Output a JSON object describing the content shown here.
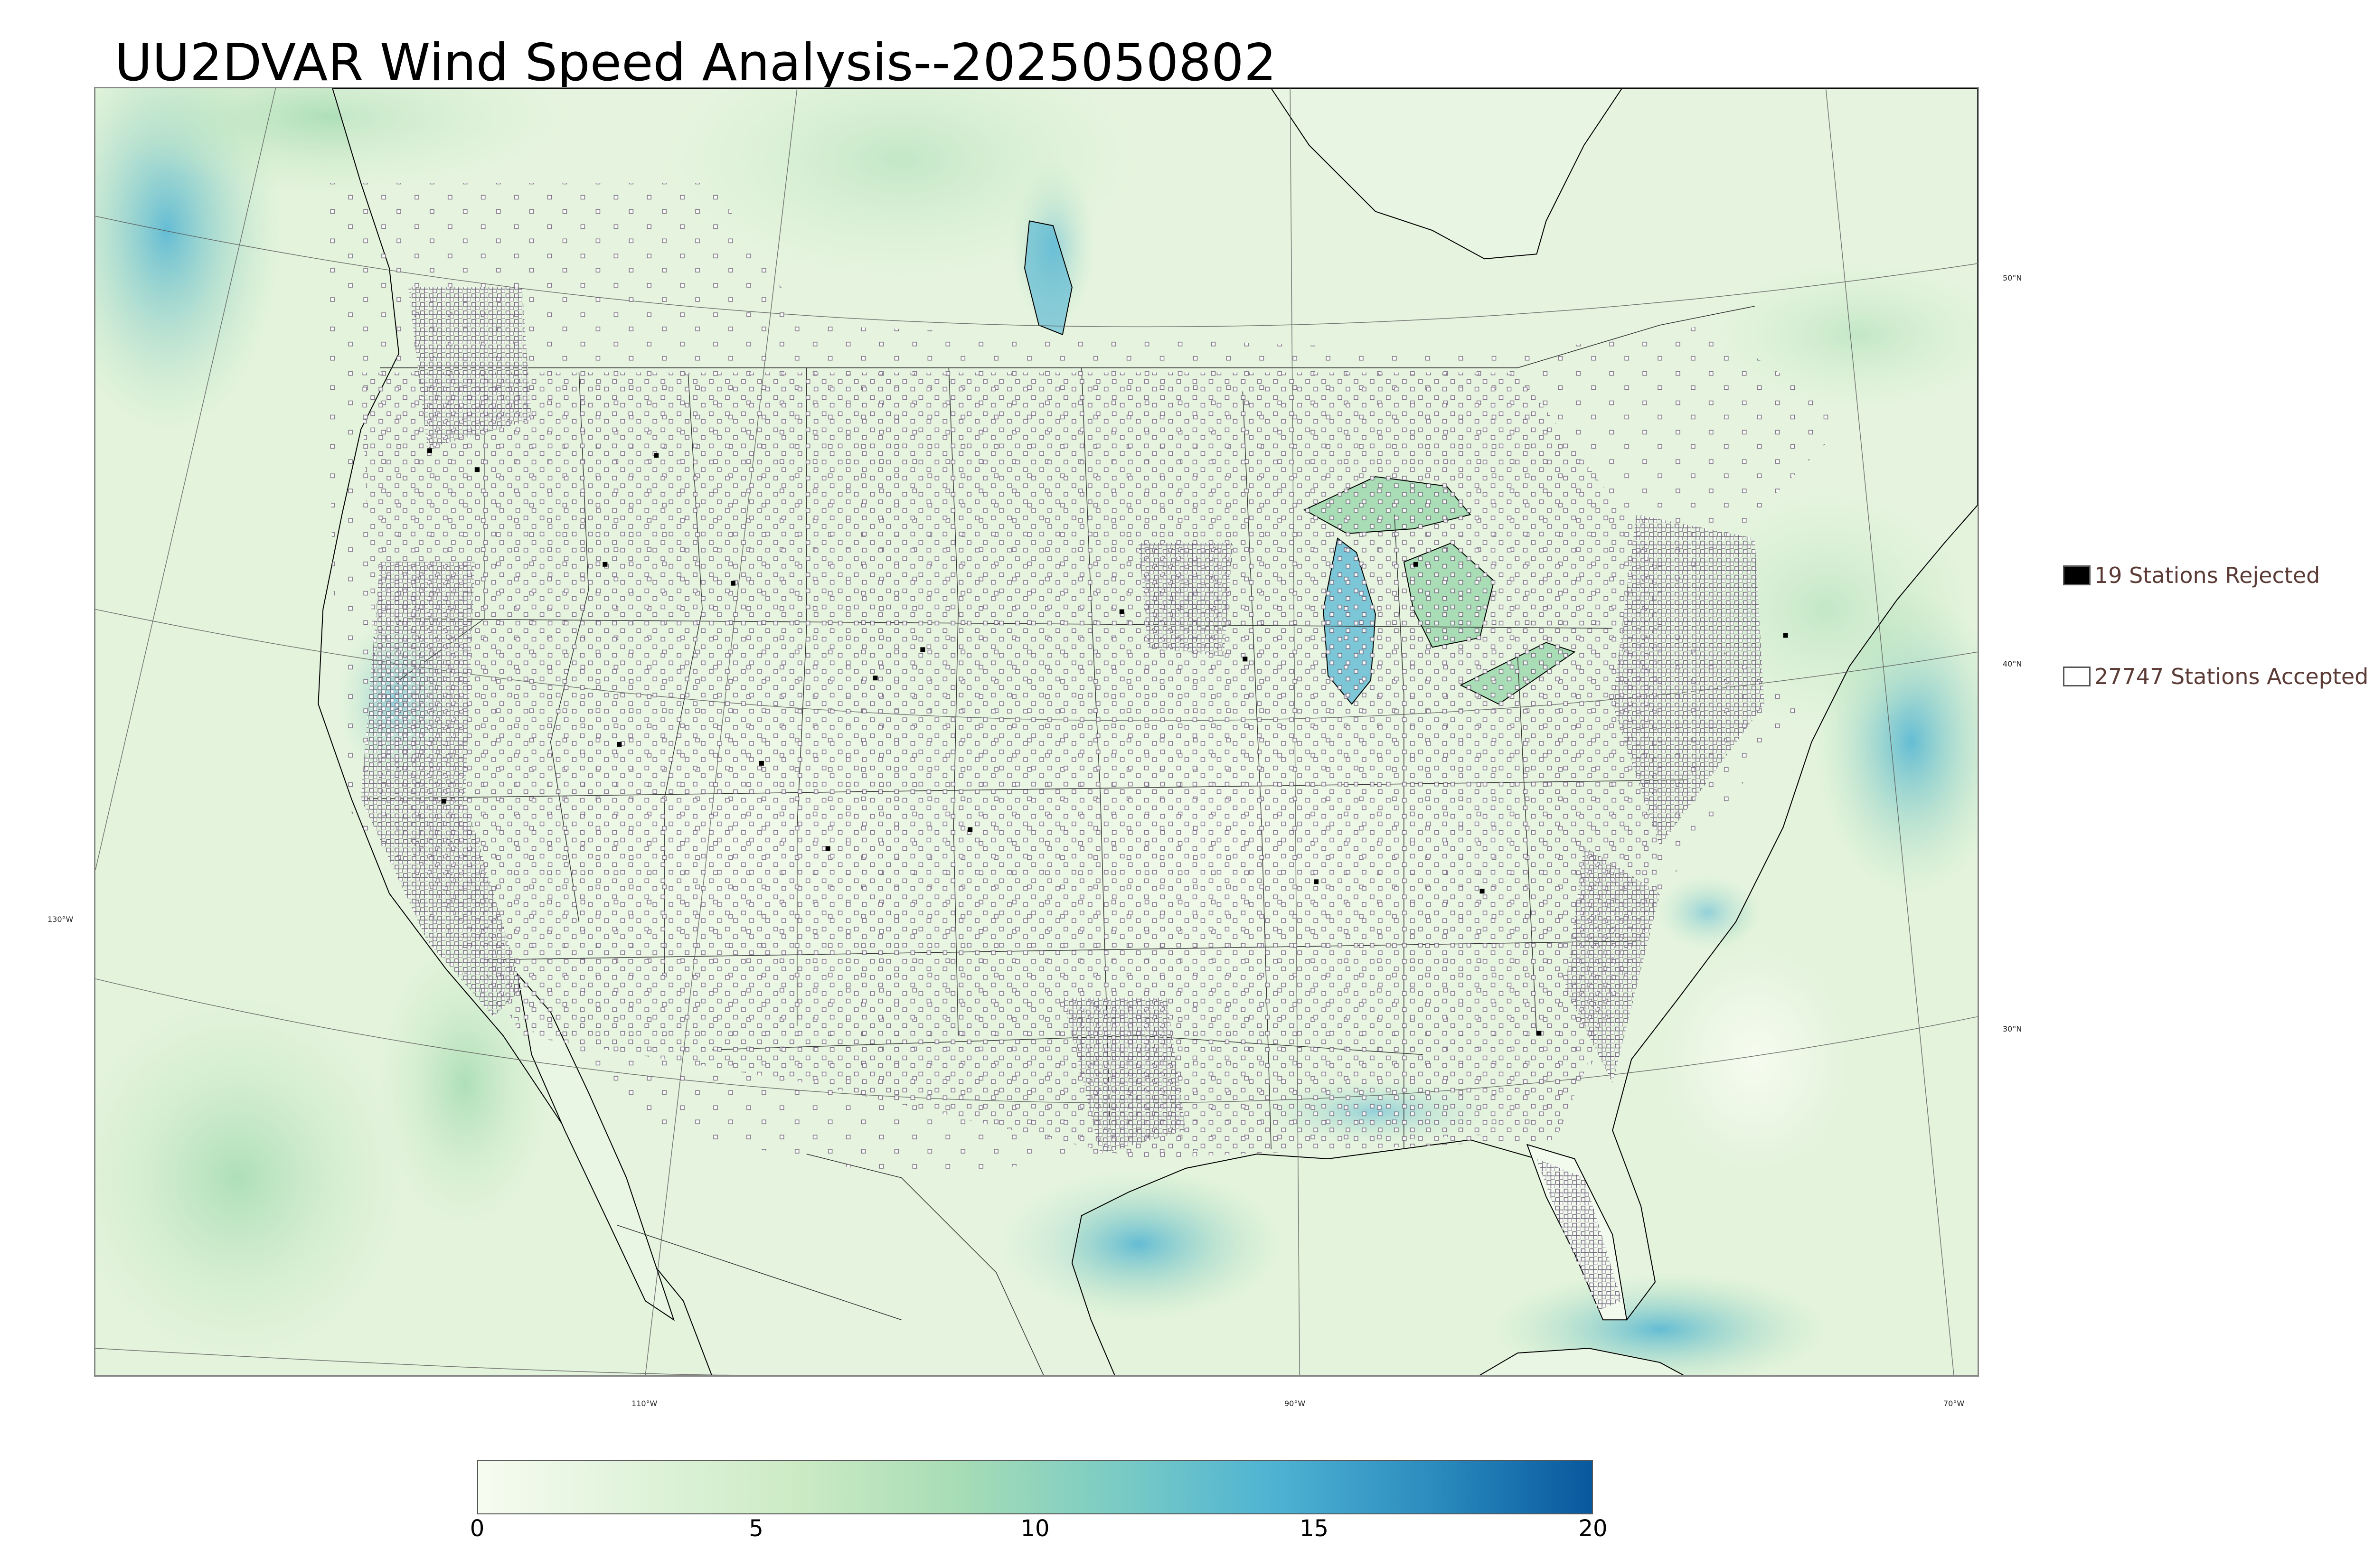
{
  "title": "UU2DVAR Wind Speed Analysis--2025050802",
  "legend": {
    "rejected": {
      "label": "19 Stations Rejected",
      "color": "#000000"
    },
    "accepted": {
      "label": "27747 Stations Accepted",
      "color": "#ffffff"
    }
  },
  "graticule": {
    "lat_labels": [
      "50°N",
      "40°N",
      "30°N"
    ],
    "lon_labels": [
      "130°W",
      "110°W",
      "90°W",
      "70°W"
    ]
  },
  "colorbar": {
    "min": 0,
    "max": 20,
    "tick_labels": [
      "0",
      "5",
      "10",
      "15",
      "20"
    ],
    "colors": [
      "#f7fcf0",
      "#e0f3db",
      "#ccebc5",
      "#a8ddb5",
      "#7bccc4",
      "#4eb3d3",
      "#2b8cbe",
      "#08589e"
    ]
  }
}
